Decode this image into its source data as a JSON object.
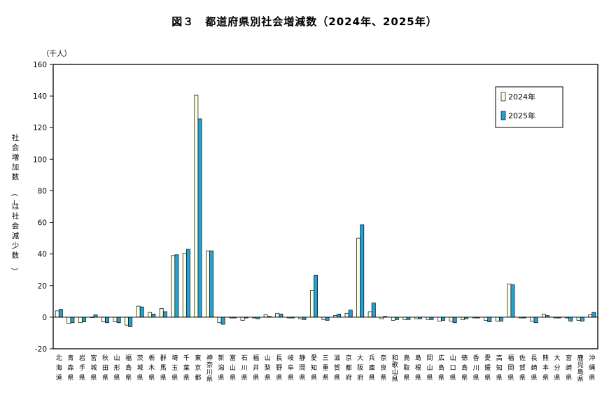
{
  "chart_data": {
    "type": "bar",
    "title": "図３　都道府県別社会増減数（2024年、2025年）",
    "unit_label": "（千人）",
    "ylabel": "社会増加数（－は社会減少数）",
    "ylim": [
      -20,
      160
    ],
    "yticks": [
      -20,
      0,
      20,
      40,
      60,
      80,
      100,
      120,
      140,
      160
    ],
    "grid": false,
    "legend_position": "top-right",
    "colors": {
      "2024": "#ffffe0",
      "2025": "#1fa3d9",
      "stroke": "#000000"
    },
    "categories": [
      "北海道",
      "青森県",
      "岩手県",
      "宮城県",
      "秋田県",
      "山形県",
      "福島県",
      "茨城県",
      "栃木県",
      "群馬県",
      "埼玉県",
      "千葉県",
      "東京都",
      "神奈川県",
      "新潟県",
      "富山県",
      "石川県",
      "福井県",
      "山梨県",
      "長野県",
      "岐阜県",
      "静岡県",
      "愛知県",
      "三重県",
      "滋賀県",
      "京都府",
      "大阪府",
      "兵庫県",
      "奈良県",
      "和歌山県",
      "鳥取県",
      "島根県",
      "岡山県",
      "広島県",
      "山口県",
      "徳島県",
      "香川県",
      "愛媛県",
      "高知県",
      "福岡県",
      "佐賀県",
      "長崎県",
      "熊本県",
      "大分県",
      "宮崎県",
      "鹿児島県",
      "沖縄県"
    ],
    "series": [
      {
        "name": "2024年",
        "values": [
          4,
          -4,
          -3.5,
          0,
          -3,
          -3,
          -5,
          7,
          3,
          5.5,
          39,
          40.5,
          140.5,
          42,
          -3.5,
          -0.5,
          -2,
          -0.5,
          1.5,
          2.5,
          -0.5,
          -1,
          17,
          -1.5,
          1,
          2.5,
          50,
          3.5,
          -1,
          -2,
          -1.5,
          -1,
          -1.5,
          -2.5,
          -2.5,
          -1.5,
          -0.5,
          -2,
          -2.5,
          21,
          -0.5,
          -2.5,
          2,
          -0.5,
          -0.5,
          -2,
          1.5
        ]
      },
      {
        "name": "2025年",
        "values": [
          5,
          -3.5,
          -3,
          1.5,
          -3.5,
          -3.5,
          -6,
          6.5,
          2,
          3.5,
          39.5,
          43,
          125.5,
          42,
          -4.5,
          -0.5,
          -0.5,
          -1,
          0.5,
          2,
          -0.5,
          -1.5,
          26.5,
          -2,
          2,
          4.5,
          58.5,
          9,
          0.5,
          -1.5,
          -1.5,
          -1,
          -1.5,
          -2,
          -3.5,
          -1,
          -0.5,
          -3,
          -2.5,
          20.5,
          -0.5,
          -3.5,
          1,
          -0.5,
          -2.5,
          -2.5,
          3
        ]
      }
    ]
  }
}
